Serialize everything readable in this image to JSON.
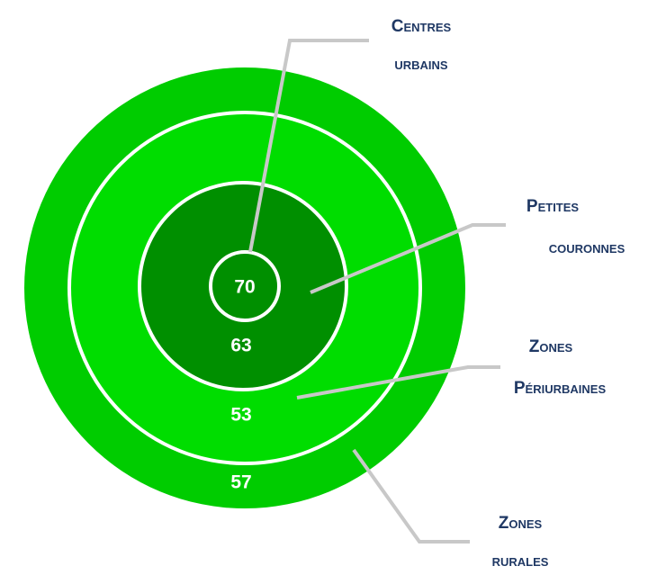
{
  "zones": [
    {
      "label": [
        "Centres",
        "urbains"
      ],
      "value": "70"
    },
    {
      "label": [
        "Petites",
        "couronnes"
      ],
      "value": "63"
    },
    {
      "label": [
        "Zones",
        "Périurbaines"
      ],
      "value": "53"
    },
    {
      "label": [
        "Zones",
        "rurales"
      ],
      "value": "57"
    }
  ]
}
